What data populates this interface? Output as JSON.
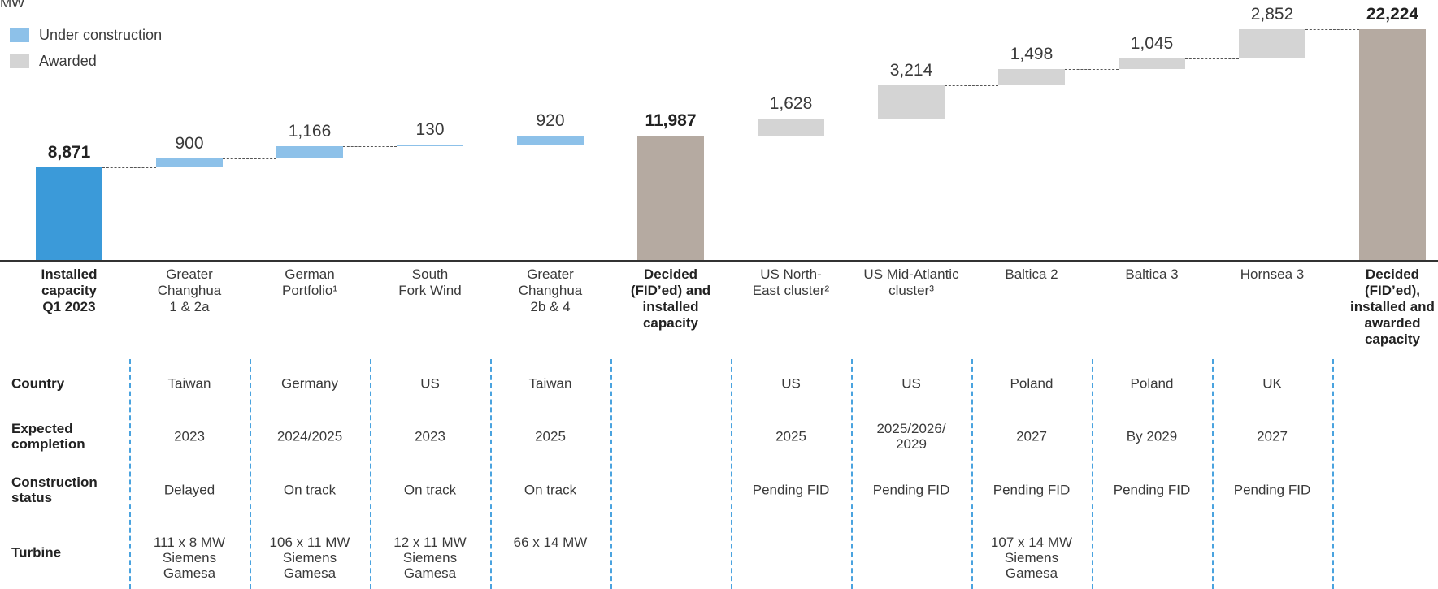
{
  "chart_data": {
    "type": "waterfall",
    "y_label": "MW",
    "legend": [
      {
        "name": "Under construction",
        "color": "#8dc1e9"
      },
      {
        "name": "Awarded",
        "color": "#d4d4d4"
      }
    ],
    "categories": [
      "Installed\ncapacity\nQ1 2023",
      "Greater\nChanghua\n1 & 2a",
      "German\nPortfolio¹",
      "South\nFork Wind",
      "Greater\nChanghua\n2b & 4",
      "Decided\n(FID’ed) and\ninstalled\ncapacity",
      "US North-\nEast cluster²",
      "US Mid-Atlantic\ncluster³",
      "Baltica 2",
      "Baltica 3",
      "Hornsea 3",
      "Decided\n(FID’ed),\ninstalled and\nawarded\ncapacity"
    ],
    "values": [
      8871,
      900,
      1166,
      130,
      920,
      11987,
      1628,
      3214,
      1498,
      1045,
      2852,
      22224
    ],
    "value_labels": [
      "8,871",
      "900",
      "1,166",
      "130",
      "920",
      "11,987",
      "1,628",
      "3,214",
      "1,498",
      "1,045",
      "2,852",
      "22,224"
    ],
    "colors": [
      "#3b9ad9",
      "#8dc1e9",
      "#8dc1e9",
      "#8dc1e9",
      "#8dc1e9",
      "#b5aaa1",
      "#d4d4d4",
      "#d4d4d4",
      "#d4d4d4",
      "#d4d4d4",
      "#d4d4d4",
      "#b5aaa1"
    ],
    "ylim": [
      0,
      25000
    ]
  },
  "table": {
    "rows": [
      {
        "label": "Country",
        "cells": [
          "Taiwan",
          "Germany",
          "US",
          "Taiwan",
          null,
          "US",
          "US",
          "Poland",
          "Poland",
          "UK",
          null
        ]
      },
      {
        "label": "Expected\ncompletion",
        "cells": [
          "2023",
          "2024/2025",
          "2023",
          "2025",
          null,
          "2025",
          "2025/2026/\n2029",
          "2027",
          "By 2029",
          "2027",
          null
        ]
      },
      {
        "label": "Construction\nstatus",
        "cells": [
          "Delayed",
          "On track",
          "On track",
          "On track",
          null,
          "Pending FID",
          "Pending FID",
          "Pending FID",
          "Pending FID",
          "Pending FID",
          null
        ]
      },
      {
        "label": "Turbine",
        "cells": [
          "111 x 8 MW\nSiemens\nGamesa",
          "106 x 11 MW\nSiemens\nGamesa",
          "12 x 11 MW\nSiemens\nGamesa",
          "66 x 14 MW",
          null,
          null,
          null,
          "107 x 14 MW\nSiemens\nGamesa",
          null,
          null,
          null
        ]
      }
    ]
  }
}
